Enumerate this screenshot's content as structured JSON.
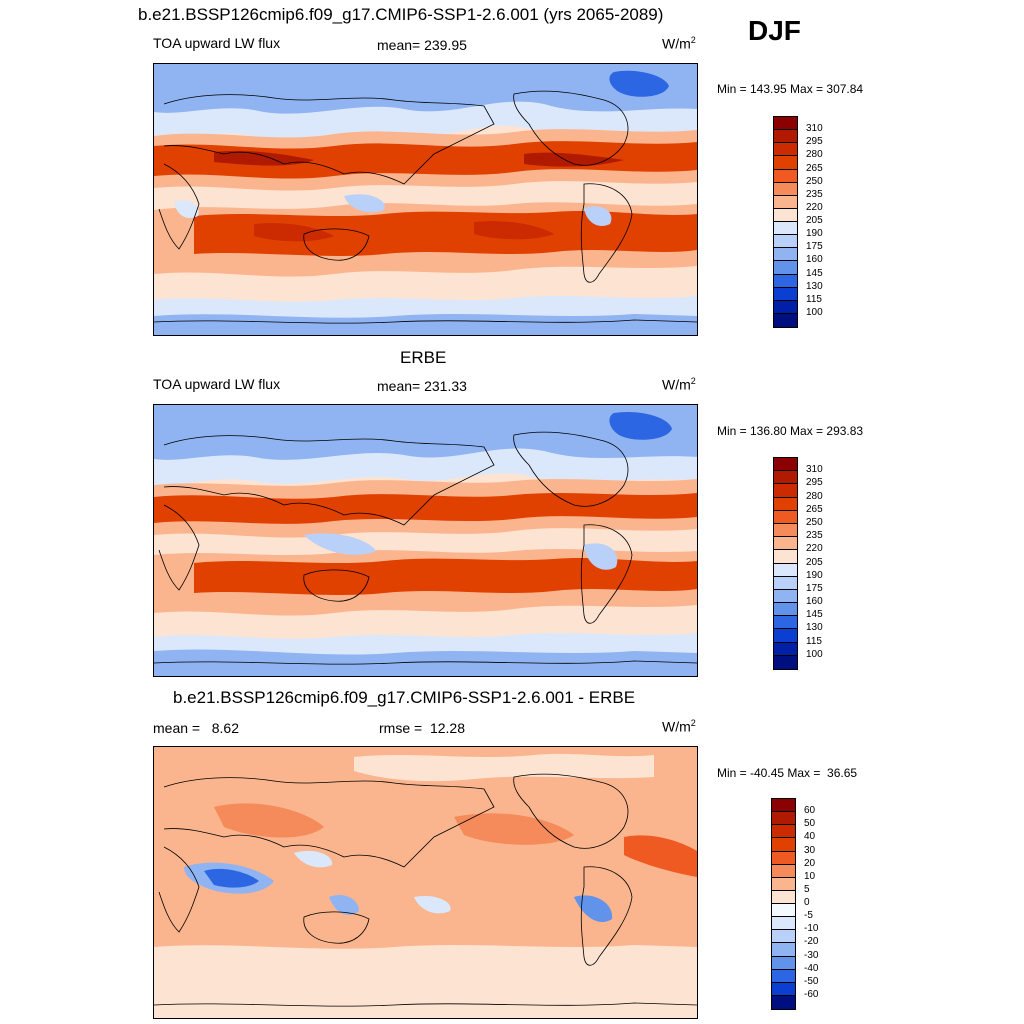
{
  "header": {
    "title": "b.e21.BSSP126cmip6.f09_g17.CMIP6-SSP1-2.6.001 (yrs 2065-2089)",
    "season": "DJF"
  },
  "panels": [
    {
      "id": "model",
      "title": "",
      "left_label": "TOA upward LW flux",
      "center_label": "mean= 239.95",
      "units_base": "W/m",
      "units_exp": "2",
      "minmax": "Min = 143.95 Max = 307.84",
      "map_style": "climo",
      "legend": {
        "labels": [
          "310",
          "295",
          "280",
          "265",
          "250",
          "235",
          "220",
          "205",
          "190",
          "175",
          "160",
          "145",
          "130",
          "115",
          "100"
        ],
        "colors": [
          "#8b0000",
          "#b01a00",
          "#cc2a00",
          "#e04000",
          "#ee5a22",
          "#f58a5a",
          "#fbb58e",
          "#fde3d2",
          "#dbe8fb",
          "#b9d0f8",
          "#90b3f2",
          "#6293ea",
          "#2d66e2",
          "#0a3fd1",
          "#0020a8",
          "#000f80"
        ]
      }
    },
    {
      "id": "obs",
      "title": "ERBE",
      "left_label": "TOA upward LW flux",
      "center_label": "mean= 231.33",
      "units_base": "W/m",
      "units_exp": "2",
      "minmax": "Min = 136.80 Max = 293.83",
      "map_style": "climo",
      "legend": {
        "labels": [
          "310",
          "295",
          "280",
          "265",
          "250",
          "235",
          "220",
          "205",
          "190",
          "175",
          "160",
          "145",
          "130",
          "115",
          "100"
        ],
        "colors": [
          "#8b0000",
          "#b01a00",
          "#cc2a00",
          "#e04000",
          "#ee5a22",
          "#f58a5a",
          "#fbb58e",
          "#fde3d2",
          "#dbe8fb",
          "#b9d0f8",
          "#90b3f2",
          "#6293ea",
          "#2d66e2",
          "#0a3fd1",
          "#0020a8",
          "#000f80"
        ]
      }
    },
    {
      "id": "diff",
      "title": "b.e21.BSSP126cmip6.f09_g17.CMIP6-SSP1-2.6.001 - ERBE",
      "left_label": "mean =   8.62",
      "center_label": "rmse =  12.28",
      "units_base": "W/m",
      "units_exp": "2",
      "minmax": "Min = -40.45 Max =  36.65",
      "map_style": "diff",
      "legend": {
        "labels": [
          "60",
          "50",
          "40",
          "30",
          "20",
          "10",
          "5",
          "0",
          "-5",
          "-10",
          "-20",
          "-30",
          "-40",
          "-50",
          "-60"
        ],
        "colors": [
          "#8b0000",
          "#b01a00",
          "#cc2a00",
          "#e04000",
          "#ee5a22",
          "#f58a5a",
          "#fbb58e",
          "#fde3d2",
          "#f4f8ff",
          "#dbe8fb",
          "#b9d0f8",
          "#90b3f2",
          "#6293ea",
          "#2d66e2",
          "#0a3fd1",
          "#000f80"
        ]
      }
    }
  ]
}
